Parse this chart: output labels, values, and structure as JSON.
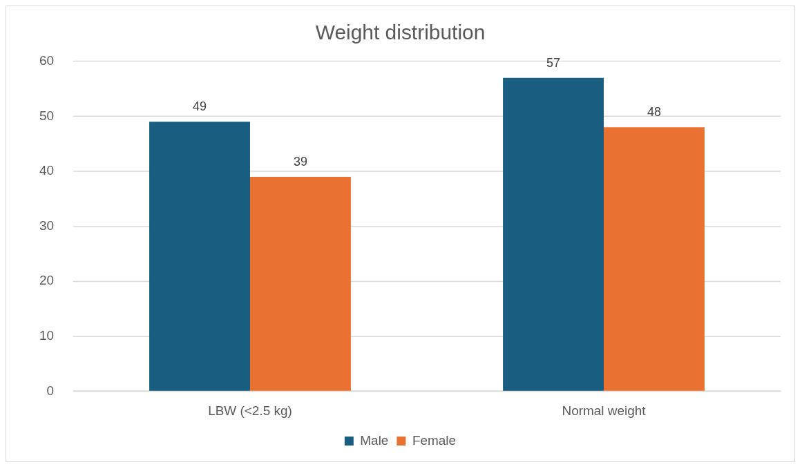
{
  "chart_data": {
    "type": "bar",
    "title": "Weight distribution",
    "categories": [
      "LBW (<2.5 kg)",
      "Normal weight"
    ],
    "series": [
      {
        "name": "Male",
        "color": "#195e80",
        "values": [
          49,
          57
        ]
      },
      {
        "name": "Female",
        "color": "#e97132",
        "values": [
          39,
          48
        ]
      }
    ],
    "ylim": [
      0,
      60
    ],
    "yticks": [
      0,
      10,
      20,
      30,
      40,
      50,
      60
    ],
    "grid": "y",
    "legend": "bottom",
    "data_labels": true
  }
}
